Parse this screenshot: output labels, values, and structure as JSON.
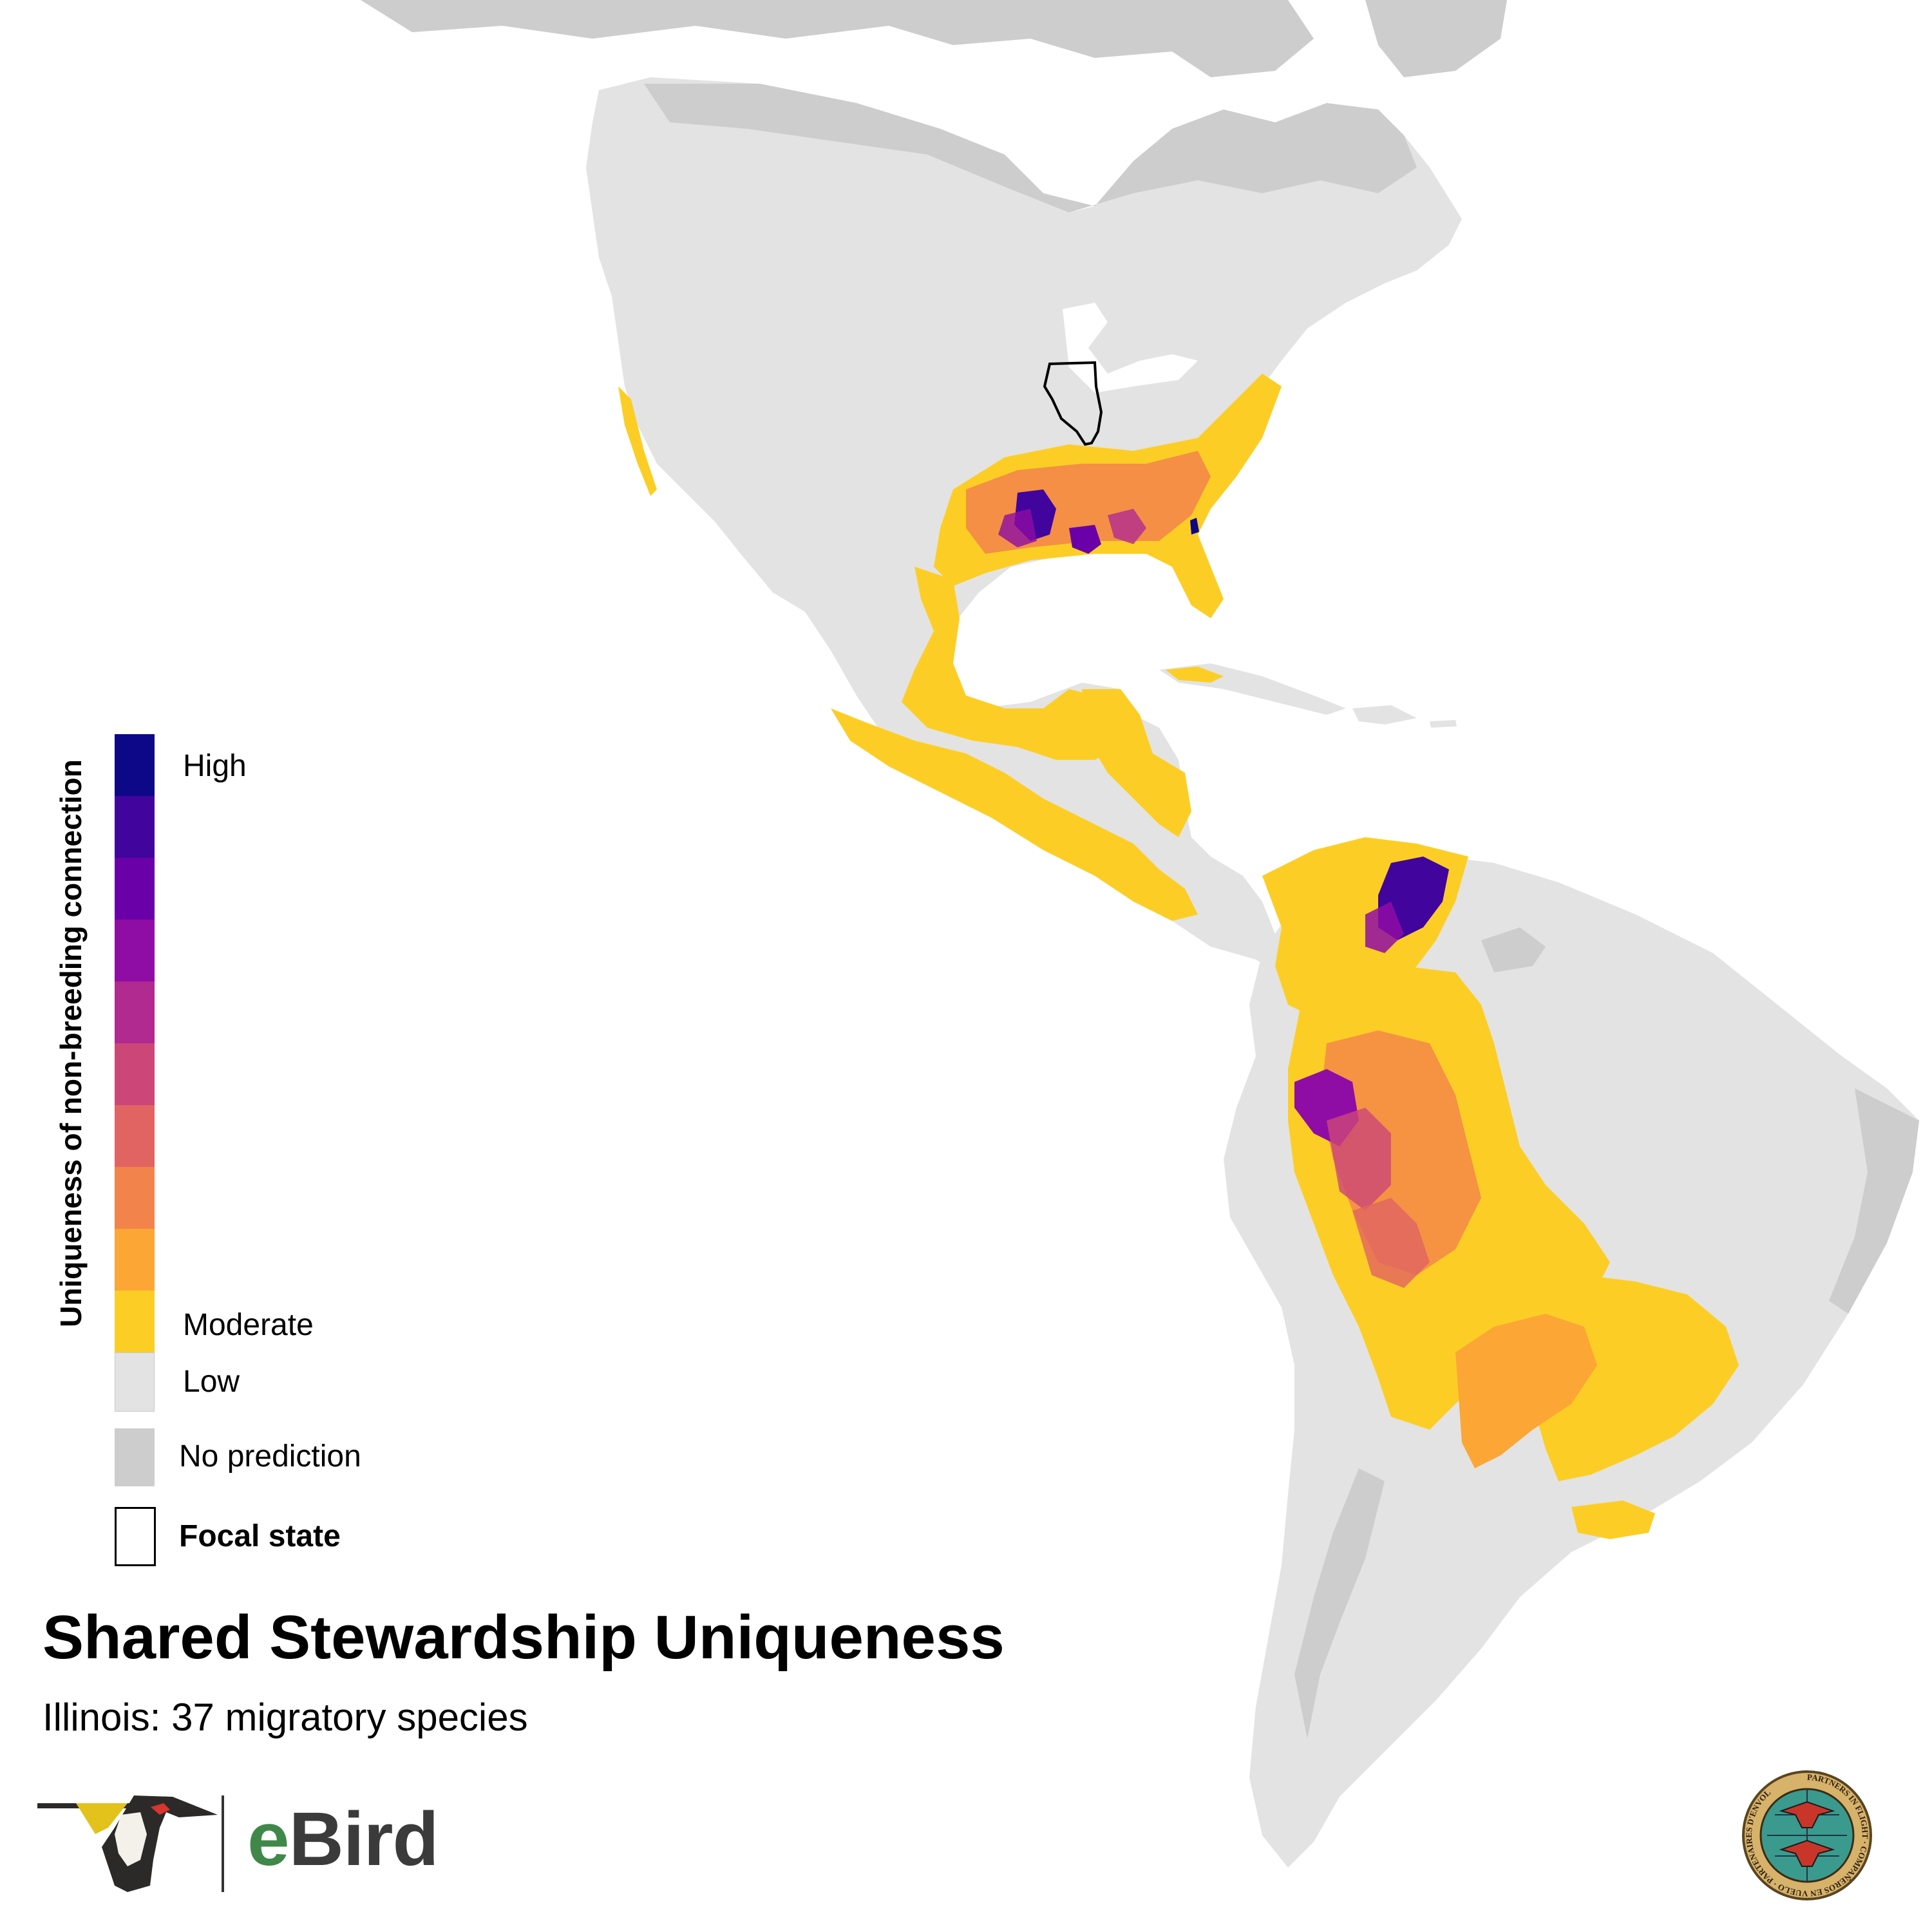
{
  "title": "Shared Stewardship Uniqueness",
  "subtitle": "Illinois: 37 migratory species",
  "legend": {
    "axis_title": "Uniqueness of non-breeding connection",
    "high_label": "High",
    "moderate_label": "Moderate",
    "low_label": "Low",
    "no_prediction_label": "No prediction",
    "focal_state_label": "Focal state",
    "scale_colors": [
      "#0d0887",
      "#41049d",
      "#6a00a8",
      "#8f0da4",
      "#b12a90",
      "#cc4778",
      "#e16462",
      "#f2844b",
      "#fca636",
      "#fcce25"
    ],
    "low_color": "#e3e3e3",
    "no_prediction_color": "#cdcdcd"
  },
  "map": {
    "focal_state": "Illinois",
    "land_color": "#e3e3e3",
    "no_prediction_color": "#cdcdcd",
    "ocean_color": "#ffffff",
    "high_uniqueness_regions": [
      "Arkansas",
      "Louisiana",
      "Georgia coast",
      "Lake Maracaibo basin",
      "Western Amazon"
    ],
    "moderate_uniqueness_regions": [
      "Southeastern United States",
      "Eastern Mexico",
      "Yucatan",
      "Central America",
      "Colombia",
      "Amazon basin",
      "Bolivia",
      "Paraguay",
      "Southern Brazil"
    ]
  },
  "branding": {
    "ebird_text": "Bird",
    "ebird_e": "e",
    "pif_ring_text": "PARTNERS IN FLIGHT · COMPAÑEROS EN VUELO · PARTENAIRES D'ENVOL"
  }
}
